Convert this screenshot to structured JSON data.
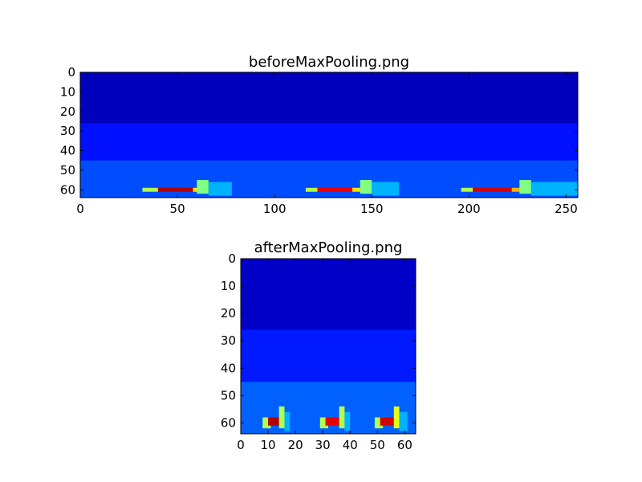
{
  "chart_data": [
    {
      "type": "heatmap",
      "title": "beforeMaxPooling.png",
      "xlabel": "",
      "ylabel": "",
      "colormap": "jet",
      "grid": false,
      "data_shape": [
        64,
        256
      ],
      "xlim": [
        0,
        256
      ],
      "ylim": [
        64,
        0
      ],
      "xticks": [
        0,
        50,
        100,
        150,
        200,
        250
      ],
      "yticks": [
        0,
        10,
        20,
        30,
        40,
        50,
        60
      ],
      "base_level": 0.05,
      "background_bands": [
        {
          "rows": [
            0,
            26
          ],
          "level": 0.06
        },
        {
          "rows": [
            26,
            45
          ],
          "level": 0.14
        },
        {
          "rows": [
            45,
            64
          ],
          "level": 0.2
        }
      ],
      "hotspots": [
        {
          "x": [
            32,
            40
          ],
          "y": [
            59,
            61
          ],
          "level": 0.55
        },
        {
          "x": [
            40,
            58
          ],
          "y": [
            59,
            61
          ],
          "level": 0.95
        },
        {
          "x": [
            58,
            62
          ],
          "y": [
            59,
            61
          ],
          "level": 0.65
        },
        {
          "x": [
            60,
            66
          ],
          "y": [
            55,
            62
          ],
          "level": 0.5
        },
        {
          "x": [
            66,
            78
          ],
          "y": [
            56,
            63
          ],
          "level": 0.3
        },
        {
          "x": [
            116,
            122
          ],
          "y": [
            59,
            61
          ],
          "level": 0.55
        },
        {
          "x": [
            122,
            140
          ],
          "y": [
            59,
            61
          ],
          "level": 0.9
        },
        {
          "x": [
            140,
            146
          ],
          "y": [
            59,
            61
          ],
          "level": 0.65
        },
        {
          "x": [
            144,
            150
          ],
          "y": [
            55,
            62
          ],
          "level": 0.5
        },
        {
          "x": [
            150,
            164
          ],
          "y": [
            56,
            63
          ],
          "level": 0.3
        },
        {
          "x": [
            196,
            202
          ],
          "y": [
            59,
            61
          ],
          "level": 0.55
        },
        {
          "x": [
            202,
            222
          ],
          "y": [
            59,
            61
          ],
          "level": 0.92
        },
        {
          "x": [
            222,
            228
          ],
          "y": [
            59,
            61
          ],
          "level": 0.7
        },
        {
          "x": [
            226,
            232
          ],
          "y": [
            55,
            62
          ],
          "level": 0.5
        },
        {
          "x": [
            232,
            256
          ],
          "y": [
            56,
            63
          ],
          "level": 0.3
        }
      ]
    },
    {
      "type": "heatmap",
      "title": "afterMaxPooling.png",
      "xlabel": "",
      "ylabel": "",
      "colormap": "jet",
      "grid": false,
      "data_shape": [
        64,
        64
      ],
      "xlim": [
        0,
        64
      ],
      "ylim": [
        64,
        0
      ],
      "xticks": [
        0,
        10,
        20,
        30,
        40,
        50,
        60
      ],
      "yticks": [
        0,
        10,
        20,
        30,
        40,
        50,
        60
      ],
      "base_level": 0.06,
      "background_bands": [
        {
          "rows": [
            0,
            26
          ],
          "level": 0.07
        },
        {
          "rows": [
            26,
            45
          ],
          "level": 0.15
        },
        {
          "rows": [
            45,
            64
          ],
          "level": 0.22
        }
      ],
      "hotspots": [
        {
          "x": [
            8,
            11
          ],
          "y": [
            58,
            62
          ],
          "level": 0.55
        },
        {
          "x": [
            10,
            14
          ],
          "y": [
            58,
            61
          ],
          "level": 0.95
        },
        {
          "x": [
            14,
            16
          ],
          "y": [
            54,
            62
          ],
          "level": 0.55
        },
        {
          "x": [
            16,
            18
          ],
          "y": [
            56,
            63
          ],
          "level": 0.3
        },
        {
          "x": [
            29,
            32
          ],
          "y": [
            58,
            62
          ],
          "level": 0.55
        },
        {
          "x": [
            31,
            36
          ],
          "y": [
            58,
            61
          ],
          "level": 0.9
        },
        {
          "x": [
            36,
            38
          ],
          "y": [
            54,
            62
          ],
          "level": 0.55
        },
        {
          "x": [
            38,
            40
          ],
          "y": [
            56,
            63
          ],
          "level": 0.3
        },
        {
          "x": [
            49,
            52
          ],
          "y": [
            58,
            62
          ],
          "level": 0.55
        },
        {
          "x": [
            51,
            56
          ],
          "y": [
            58,
            61
          ],
          "level": 0.92
        },
        {
          "x": [
            56,
            58
          ],
          "y": [
            54,
            62
          ],
          "level": 0.6
        },
        {
          "x": [
            58,
            61
          ],
          "y": [
            56,
            63
          ],
          "level": 0.3
        }
      ]
    }
  ]
}
